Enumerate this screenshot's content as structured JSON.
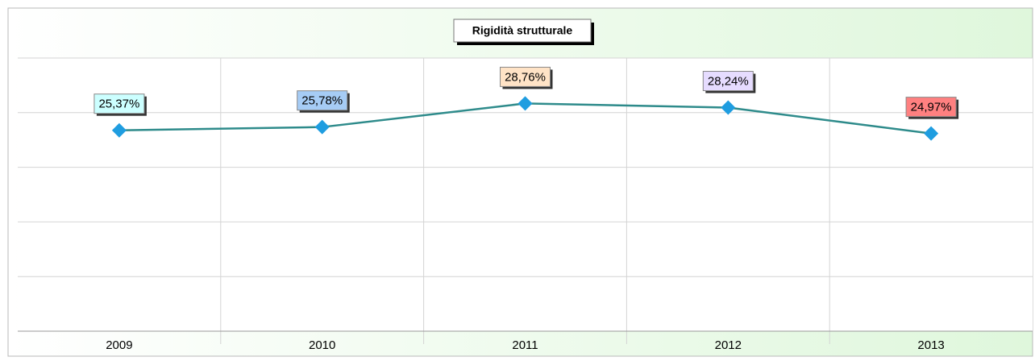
{
  "chart_data": {
    "type": "line",
    "title": "Rigidità strutturale",
    "categories": [
      "2009",
      "2010",
      "2011",
      "2012",
      "2013"
    ],
    "series": [
      {
        "color": "#2e8b8b",
        "marker_color": "#1f9de0",
        "values": [
          25.37,
          25.78,
          28.76,
          28.24,
          24.97
        ],
        "value_labels": [
          "25,37%",
          "25,78%",
          "28,76%",
          "28,24%",
          "24,97%"
        ],
        "label_colors": [
          "#ccffff",
          "#a6ccf5",
          "#ffe3c6",
          "#e6dcff",
          "#ff8080"
        ]
      }
    ],
    "ylim": [
      0,
      34.5
    ],
    "yticks": [
      0,
      6.9,
      13.8,
      20.7,
      27.6,
      34.5
    ],
    "grid": true
  }
}
